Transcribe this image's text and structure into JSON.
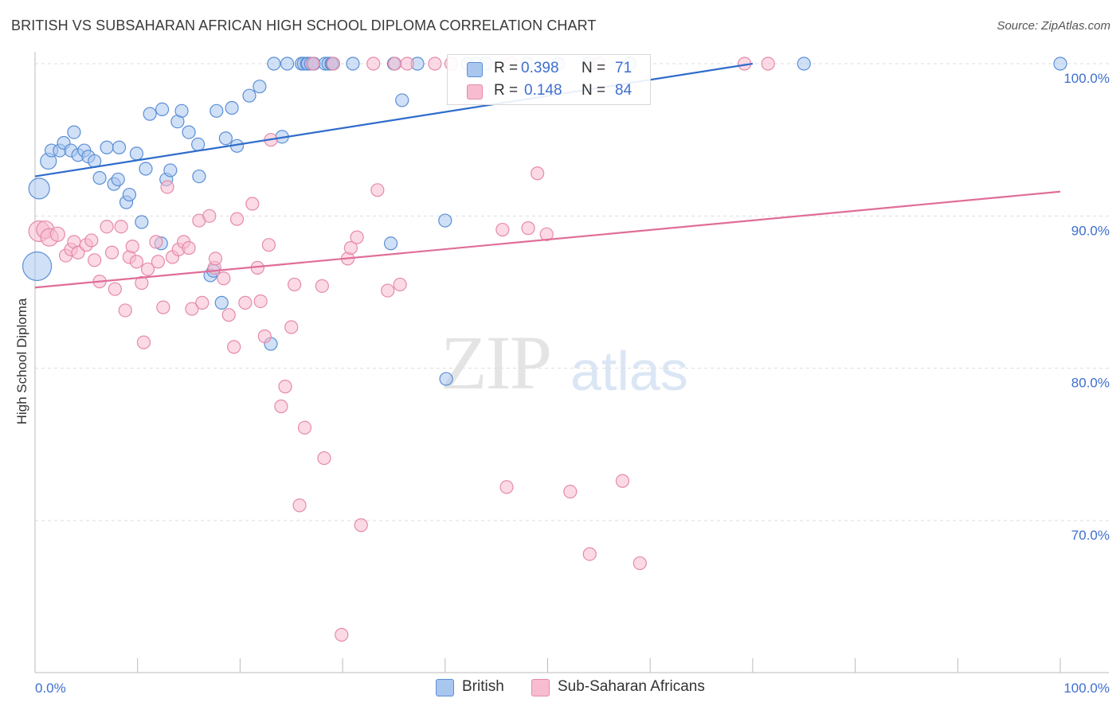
{
  "header": {
    "title": "BRITISH VS SUBSAHARAN AFRICAN HIGH SCHOOL DIPLOMA CORRELATION CHART",
    "source": "Source: ZipAtlas.com"
  },
  "watermark": {
    "zip": "ZIP",
    "atlas": "atlas"
  },
  "legend": {
    "british": {
      "r_label": "R =",
      "r_value": "0.398",
      "n_label": "N =",
      "n_value": "71"
    },
    "subsaharan": {
      "r_label": "R =",
      "r_value": "0.148",
      "n_label": "N =",
      "n_value": "84"
    }
  },
  "bottom_legend": {
    "british": "British",
    "subsaharan": "Sub-Saharan Africans"
  },
  "colors": {
    "british_fill": "#a9c6ee",
    "british_stroke": "#5b8fd6",
    "british_line": "#2f6ccb",
    "subsaharan_fill": "#f7bcd0",
    "subsaharan_stroke": "#e58aa9",
    "subsaharan_line": "#e06d98",
    "tick": "#3f6fcf",
    "grid": "#dddddd"
  },
  "chart_data": {
    "type": "scatter",
    "title": "BRITISH VS SUBSAHARAN AFRICAN HIGH SCHOOL DIPLOMA CORRELATION CHART",
    "xlabel": "",
    "ylabel": "High School Diploma",
    "xlim": [
      0,
      100
    ],
    "ylim": [
      60.5,
      101.5
    ],
    "x_tick_labels": [
      "0.0%",
      "100.0%"
    ],
    "y_ticks": [
      100,
      90,
      80,
      70
    ],
    "y_tick_labels": [
      "100.0%",
      "90.0%",
      "80.0%",
      "70.0%"
    ],
    "grid": true,
    "legend_position": "top-center",
    "series": [
      {
        "name": "British",
        "trend": {
          "x0": 0,
          "y0": 92.6,
          "x1": 70,
          "y1": 100
        },
        "points": [
          [
            0.2,
            86.7,
            36
          ],
          [
            0.4,
            91.8,
            26
          ],
          [
            1.3,
            93.6,
            20
          ],
          [
            1.6,
            94.3,
            16
          ],
          [
            2.4,
            94.3,
            16
          ],
          [
            2.8,
            94.8,
            16
          ],
          [
            3.5,
            94.3,
            16
          ],
          [
            3.8,
            95.5,
            16
          ],
          [
            4.2,
            94.0,
            16
          ],
          [
            4.8,
            94.3,
            16
          ],
          [
            5.2,
            93.9,
            16
          ],
          [
            5.8,
            93.6,
            16
          ],
          [
            6.3,
            92.5,
            16
          ],
          [
            7.0,
            94.5,
            16
          ],
          [
            7.7,
            92.1,
            16
          ],
          [
            8.1,
            92.4,
            16
          ],
          [
            8.2,
            94.5,
            16
          ],
          [
            8.9,
            90.9,
            16
          ],
          [
            9.2,
            91.4,
            16
          ],
          [
            9.9,
            94.1,
            16
          ],
          [
            10.4,
            89.6,
            16
          ],
          [
            10.8,
            93.1,
            16
          ],
          [
            11.2,
            96.7,
            16
          ],
          [
            12.3,
            88.2,
            16
          ],
          [
            12.4,
            97.0,
            16
          ],
          [
            12.8,
            92.4,
            16
          ],
          [
            13.2,
            93.0,
            16
          ],
          [
            13.9,
            96.2,
            16
          ],
          [
            14.3,
            96.9,
            16
          ],
          [
            15.0,
            95.5,
            16
          ],
          [
            15.9,
            94.7,
            16
          ],
          [
            16.0,
            92.6,
            16
          ],
          [
            17.1,
            86.1,
            16
          ],
          [
            17.4,
            86.4,
            16
          ],
          [
            17.7,
            96.9,
            16
          ],
          [
            18.2,
            84.3,
            16
          ],
          [
            18.6,
            95.1,
            16
          ],
          [
            19.2,
            97.1,
            16
          ],
          [
            19.7,
            94.6,
            16
          ],
          [
            20.9,
            97.9,
            16
          ],
          [
            21.9,
            98.5,
            16
          ],
          [
            23.0,
            81.6,
            16
          ],
          [
            23.3,
            100.0,
            16
          ],
          [
            24.1,
            95.2,
            16
          ],
          [
            24.6,
            100.0,
            16
          ],
          [
            26.0,
            100.0,
            16
          ],
          [
            26.2,
            100.0,
            16
          ],
          [
            26.5,
            100.0,
            16
          ],
          [
            26.6,
            100.0,
            16
          ],
          [
            26.9,
            100.0,
            16
          ],
          [
            27.2,
            100.0,
            16
          ],
          [
            28.3,
            100.0,
            16
          ],
          [
            28.6,
            100.0,
            16
          ],
          [
            28.9,
            100.0,
            16
          ],
          [
            29.0,
            100.0,
            16
          ],
          [
            31.0,
            100.0,
            16
          ],
          [
            35.0,
            100.0,
            16
          ],
          [
            37.3,
            100.0,
            16
          ],
          [
            40.1,
            79.3,
            16
          ],
          [
            42.2,
            100.0,
            16
          ],
          [
            43.0,
            100.0,
            16
          ],
          [
            44.0,
            100.0,
            16
          ],
          [
            48.0,
            100.0,
            16
          ],
          [
            51.0,
            100.0,
            16
          ],
          [
            54.0,
            100.0,
            16
          ],
          [
            58.0,
            100.0,
            16
          ],
          [
            75.0,
            100.0,
            16
          ],
          [
            100.0,
            100.0,
            16
          ],
          [
            34.7,
            88.2,
            16
          ],
          [
            35.8,
            97.6,
            16
          ],
          [
            40.0,
            89.7,
            16
          ]
        ]
      },
      {
        "name": "Sub-Saharan Africans",
        "trend": {
          "x0": 0,
          "y0": 85.3,
          "x1": 100,
          "y1": 91.6
        },
        "points": [
          [
            0.4,
            89.0,
            26
          ],
          [
            1.0,
            89.1,
            22
          ],
          [
            1.4,
            88.6,
            22
          ],
          [
            2.2,
            88.8,
            18
          ],
          [
            3.0,
            87.4,
            16
          ],
          [
            3.5,
            87.8,
            16
          ],
          [
            3.8,
            88.3,
            16
          ],
          [
            4.2,
            87.6,
            16
          ],
          [
            5.0,
            88.1,
            16
          ],
          [
            5.5,
            88.4,
            16
          ],
          [
            5.8,
            87.1,
            16
          ],
          [
            6.3,
            85.7,
            16
          ],
          [
            7.0,
            89.3,
            16
          ],
          [
            7.5,
            87.6,
            16
          ],
          [
            7.8,
            85.2,
            16
          ],
          [
            8.4,
            89.3,
            16
          ],
          [
            8.8,
            83.8,
            16
          ],
          [
            9.2,
            87.3,
            16
          ],
          [
            9.5,
            88.0,
            16
          ],
          [
            9.9,
            87.0,
            16
          ],
          [
            10.4,
            85.6,
            16
          ],
          [
            10.6,
            81.7,
            16
          ],
          [
            11.0,
            86.5,
            16
          ],
          [
            11.8,
            88.3,
            16
          ],
          [
            12.0,
            87.0,
            16
          ],
          [
            12.5,
            84.0,
            16
          ],
          [
            12.9,
            91.9,
            16
          ],
          [
            13.4,
            87.3,
            16
          ],
          [
            14.0,
            87.8,
            16
          ],
          [
            14.5,
            88.3,
            16
          ],
          [
            15.0,
            87.9,
            16
          ],
          [
            15.3,
            83.9,
            16
          ],
          [
            16.0,
            89.7,
            16
          ],
          [
            16.3,
            84.3,
            16
          ],
          [
            17.0,
            90.0,
            16
          ],
          [
            17.5,
            86.6,
            16
          ],
          [
            17.6,
            87.2,
            16
          ],
          [
            18.4,
            85.9,
            16
          ],
          [
            18.9,
            83.5,
            16
          ],
          [
            19.4,
            81.4,
            16
          ],
          [
            19.7,
            89.8,
            16
          ],
          [
            20.5,
            84.3,
            16
          ],
          [
            21.2,
            90.8,
            16
          ],
          [
            21.7,
            86.6,
            16
          ],
          [
            22.0,
            84.4,
            16
          ],
          [
            22.4,
            82.1,
            16
          ],
          [
            22.8,
            88.1,
            16
          ],
          [
            23.0,
            95.0,
            16
          ],
          [
            24.0,
            77.5,
            16
          ],
          [
            24.4,
            78.8,
            16
          ],
          [
            25.0,
            82.7,
            16
          ],
          [
            25.3,
            85.5,
            16
          ],
          [
            25.8,
            71.0,
            16
          ],
          [
            26.3,
            76.1,
            16
          ],
          [
            27.1,
            100.0,
            16
          ],
          [
            28.0,
            85.4,
            16
          ],
          [
            28.2,
            74.1,
            16
          ],
          [
            29.1,
            100.0,
            16
          ],
          [
            29.9,
            62.5,
            16
          ],
          [
            30.5,
            87.2,
            16
          ],
          [
            30.8,
            87.9,
            16
          ],
          [
            31.4,
            88.6,
            16
          ],
          [
            31.8,
            69.7,
            16
          ],
          [
            33.0,
            100.0,
            16
          ],
          [
            33.4,
            91.7,
            16
          ],
          [
            34.4,
            85.1,
            16
          ],
          [
            35.1,
            100.0,
            16
          ],
          [
            35.6,
            85.5,
            16
          ],
          [
            36.3,
            100.0,
            16
          ],
          [
            39.0,
            100.0,
            16
          ],
          [
            40.6,
            100.0,
            16
          ],
          [
            45.6,
            89.1,
            16
          ],
          [
            46.0,
            72.2,
            16
          ],
          [
            46.4,
            100.0,
            16
          ],
          [
            48.1,
            89.2,
            16
          ],
          [
            49.0,
            92.8,
            16
          ],
          [
            49.9,
            88.8,
            16
          ],
          [
            52.2,
            71.9,
            16
          ],
          [
            54.1,
            67.8,
            16
          ],
          [
            55.0,
            100.0,
            16
          ],
          [
            57.3,
            72.6,
            16
          ],
          [
            59.0,
            67.2,
            16
          ],
          [
            69.2,
            100.0,
            16
          ],
          [
            71.5,
            100.0,
            16
          ]
        ]
      }
    ]
  }
}
